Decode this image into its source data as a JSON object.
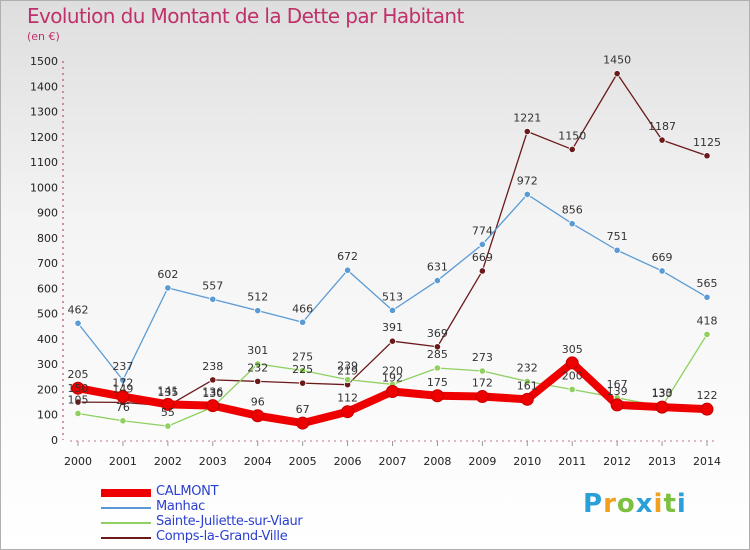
{
  "title": "Evolution du Montant de la Dette par Habitant",
  "unit_label": "(en €)",
  "logo_text": "Proxiti",
  "chart_data": {
    "type": "line",
    "title": "Evolution du Montant de la Dette par Habitant",
    "ylabel": "(en €)",
    "x": [
      "2000",
      "2001",
      "2002",
      "2003",
      "2004",
      "2005",
      "2006",
      "2007",
      "2008",
      "2009",
      "2010",
      "2011",
      "2012",
      "2013",
      "2014"
    ],
    "ylim": [
      0,
      1500
    ],
    "yticks": [
      "0",
      "100",
      "200",
      "300",
      "400",
      "500",
      "600",
      "700",
      "800",
      "900",
      "1000",
      "1100",
      "1200",
      "1300",
      "1400",
      "1500"
    ],
    "grid": false,
    "legend_position": "bottom-left",
    "series": [
      {
        "name": "CALMONT",
        "color": "#ee0000",
        "values": [
          205,
          172,
          141,
          136,
          96,
          67,
          112,
          192,
          175,
          172,
          161,
          305,
          139,
          130,
          122
        ]
      },
      {
        "name": "Manhac",
        "color": "#5a9bd5",
        "values": [
          462,
          237,
          602,
          557,
          512,
          466,
          672,
          513,
          631,
          774,
          972,
          856,
          751,
          669,
          565
        ]
      },
      {
        "name": "Sainte-Juliette-sur-Viaur",
        "color": "#8fd060",
        "values": [
          105,
          76,
          55,
          130,
          301,
          275,
          239,
          220,
          285,
          273,
          232,
          200,
          167,
          133,
          418
        ]
      },
      {
        "name": "Comps-la-Grand-Ville",
        "color": "#6b1a1a",
        "values": [
          150,
          149,
          135,
          238,
          232,
          225,
          219,
          391,
          369,
          669,
          1221,
          1150,
          1450,
          1187,
          1125
        ]
      }
    ]
  }
}
